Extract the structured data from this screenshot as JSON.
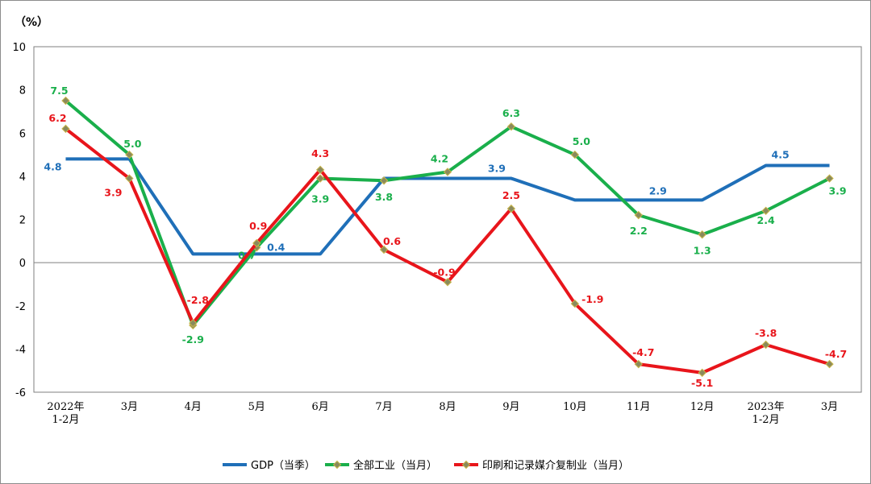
{
  "chart_data": {
    "type": "line",
    "unit_label": "（%）",
    "categories": [
      [
        "2022年",
        "1-2月"
      ],
      [
        "3月"
      ],
      [
        "4月"
      ],
      [
        "5月"
      ],
      [
        "6月"
      ],
      [
        "7月"
      ],
      [
        "8月"
      ],
      [
        "9月"
      ],
      [
        "10月"
      ],
      [
        "11月"
      ],
      [
        "12月"
      ],
      [
        "2023年",
        "1-2月"
      ],
      [
        "3月"
      ]
    ],
    "ylim": [
      -6,
      10
    ],
    "yticks": [
      -6,
      -4,
      -2,
      0,
      2,
      4,
      6,
      8,
      10
    ],
    "grid": false,
    "legend_position": "bottom",
    "series": [
      {
        "name": "GDP（当季）",
        "color": "#1f6fb8",
        "marker": "none",
        "shape": "step",
        "values": [
          4.8,
          4.8,
          0.4,
          0.4,
          0.4,
          3.9,
          3.9,
          3.9,
          2.9,
          2.9,
          2.9,
          4.5,
          4.5
        ],
        "labels": [
          {
            "index": 0,
            "text": "4.8"
          },
          {
            "index": 3,
            "text": "0.4"
          },
          {
            "index": 7,
            "text": "3.9"
          },
          {
            "index": 9,
            "text": "2.9"
          },
          {
            "index": 11,
            "text": "4.5"
          }
        ]
      },
      {
        "name": "全部工业（当月）",
        "color": "#1aaf4b",
        "marker": "diamond",
        "shape": "line",
        "values": [
          7.5,
          5.0,
          -2.9,
          0.7,
          3.9,
          3.8,
          4.2,
          6.3,
          5.0,
          2.2,
          1.3,
          2.4,
          3.9
        ],
        "labels": [
          {
            "index": 0,
            "text": "7.5"
          },
          {
            "index": 1,
            "text": "5.0"
          },
          {
            "index": 2,
            "text": "-2.9"
          },
          {
            "index": 3,
            "text": "0.7"
          },
          {
            "index": 4,
            "text": "3.9"
          },
          {
            "index": 5,
            "text": "3.8"
          },
          {
            "index": 6,
            "text": "4.2"
          },
          {
            "index": 7,
            "text": "6.3"
          },
          {
            "index": 8,
            "text": "5.0"
          },
          {
            "index": 9,
            "text": "2.2"
          },
          {
            "index": 10,
            "text": "1.3"
          },
          {
            "index": 11,
            "text": "2.4"
          },
          {
            "index": 12,
            "text": "3.9"
          }
        ]
      },
      {
        "name": "印刷和记录媒介复制业（当月）",
        "color": "#e8151b",
        "marker": "diamond",
        "shape": "line",
        "values": [
          6.2,
          3.9,
          -2.8,
          0.9,
          4.3,
          0.6,
          -0.9,
          2.5,
          -1.9,
          -4.7,
          -5.1,
          -3.8,
          -4.7
        ],
        "labels": [
          {
            "index": 0,
            "text": "6.2"
          },
          {
            "index": 1,
            "text": "3.9"
          },
          {
            "index": 2,
            "text": "-2.8"
          },
          {
            "index": 3,
            "text": "0.9"
          },
          {
            "index": 4,
            "text": "4.3"
          },
          {
            "index": 5,
            "text": "0.6"
          },
          {
            "index": 6,
            "text": "-0.9"
          },
          {
            "index": 7,
            "text": "2.5"
          },
          {
            "index": 8,
            "text": "-1.9"
          },
          {
            "index": 9,
            "text": "-4.7"
          },
          {
            "index": 10,
            "text": "-5.1"
          },
          {
            "index": 11,
            "text": "-3.8"
          },
          {
            "index": 12,
            "text": "-4.7"
          }
        ]
      }
    ]
  }
}
